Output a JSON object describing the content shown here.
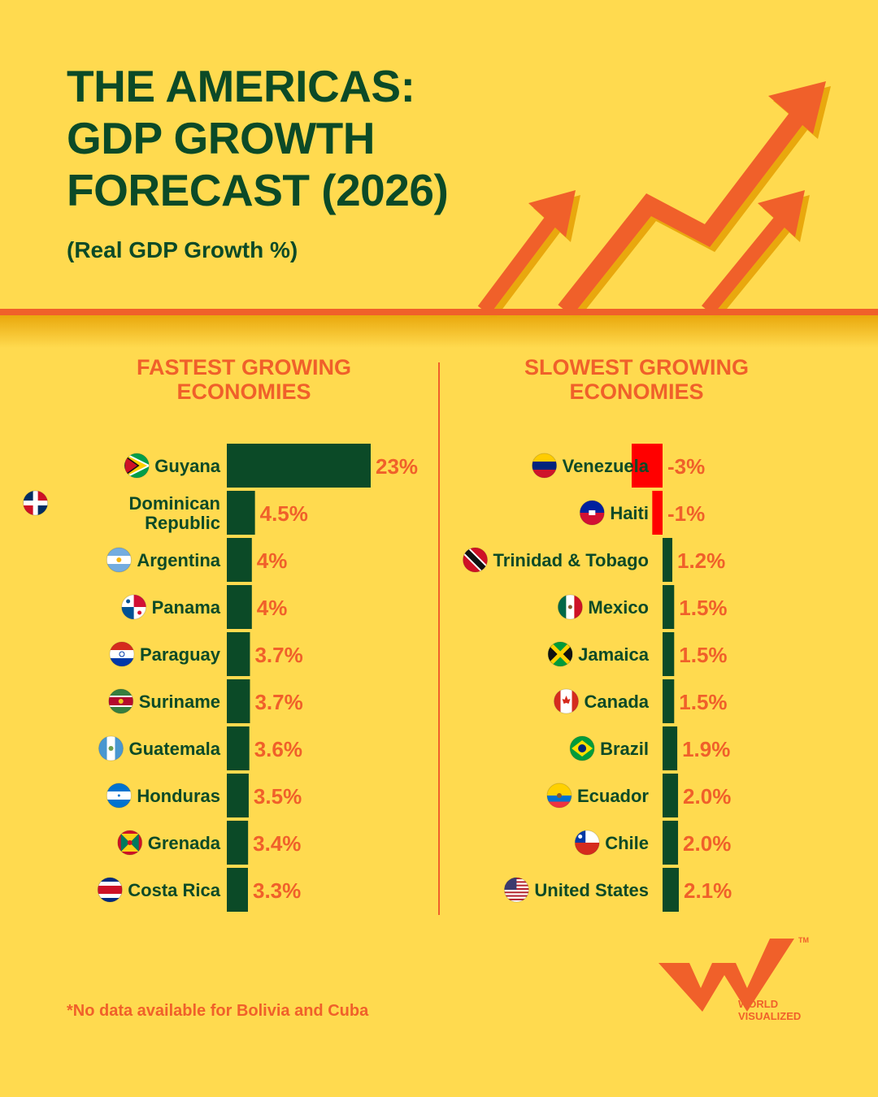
{
  "header": {
    "title_lines": [
      "THE AMERICAS:",
      "GDP GROWTH",
      "FORECAST (2026)"
    ],
    "subtitle": "(Real GDP Growth %)"
  },
  "sections": {
    "fastest_lines": [
      "FASTEST GROWING",
      "ECONOMIES"
    ],
    "slowest_lines": [
      "SLOWEST GROWING",
      "ECONOMIES"
    ]
  },
  "colors": {
    "background": "#FFDA4F",
    "bar_positive": "#0B4A27",
    "bar_negative": "#FF0000",
    "value_label": "#F0602A",
    "accent": "#F0602A"
  },
  "chart_data": [
    {
      "type": "bar",
      "orientation": "horizontal",
      "categories": [
        "Guyana",
        "Dominican Republic",
        "Argentina",
        "Panama",
        "Paraguay",
        "Suriname",
        "Guatemala",
        "Honduras",
        "Grenada",
        "Costa Rica"
      ],
      "values": [
        23,
        4.5,
        4,
        4,
        3.7,
        3.7,
        3.6,
        3.5,
        3.4,
        3.3
      ],
      "value_labels": [
        "23%",
        "4.5%",
        "4%",
        "4%",
        "3.7%",
        "3.7%",
        "3.6%",
        "3.5%",
        "3.4%",
        "3.3%"
      ],
      "flag_icons": [
        "guyana-flag-icon",
        "dominican-republic-flag-icon",
        "argentina-flag-icon",
        "panama-flag-icon",
        "paraguay-flag-icon",
        "suriname-flag-icon",
        "guatemala-flag-icon",
        "honduras-flag-icon",
        "grenada-flag-icon",
        "costa-rica-flag-icon"
      ]
    },
    {
      "type": "bar",
      "orientation": "horizontal",
      "categories": [
        "Venezuela",
        "Haiti",
        "Trinidad & Tobago",
        "Mexico",
        "Jamaica",
        "Canada",
        "Brazil",
        "Ecuador",
        "Chile",
        "United States"
      ],
      "values": [
        -3,
        -1,
        1.2,
        1.5,
        1.5,
        1.5,
        1.9,
        2.0,
        2.0,
        2.1
      ],
      "value_labels": [
        "-3%",
        "-1%",
        "1.2%",
        "1.5%",
        "1.5%",
        "1.5%",
        "1.9%",
        "2.0%",
        "2.0%",
        "2.1%"
      ],
      "flag_icons": [
        "venezuela-flag-icon",
        "haiti-flag-icon",
        "trinidad-and-tobago-flag-icon",
        "mexico-flag-icon",
        "jamaica-flag-icon",
        "canada-flag-icon",
        "brazil-flag-icon",
        "ecuador-flag-icon",
        "chile-flag-icon",
        "united-states-flag-icon"
      ]
    }
  ],
  "footnote": "*No data available for Bolivia and Cuba",
  "brand": {
    "lines": [
      "WORLD",
      "VISUALIZED"
    ],
    "tm": "TM",
    "logo_icon": "world-visualized-logo-icon"
  },
  "decor": {
    "arrows_icon": "rising-arrows-icon"
  }
}
